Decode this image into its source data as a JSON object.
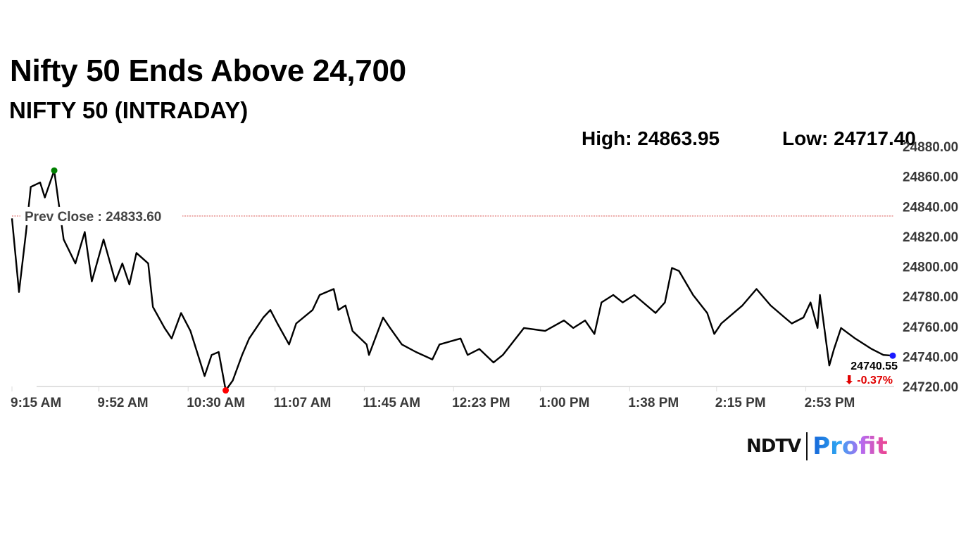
{
  "header": {
    "title": "Nifty 50 Ends Above 24,700",
    "subtitle": "NIFTY 50 (INTRADAY)",
    "high": "High: 24863.95",
    "low": "Low: 24717.40"
  },
  "logo": {
    "ndtv": "NDTV",
    "profit": "Profit"
  },
  "chart_data": {
    "type": "line",
    "title": "NIFTY 50 (INTRADAY)",
    "xlim": [
      "9:15",
      "15:30"
    ],
    "ylim": [
      24720,
      24880
    ],
    "grid": false,
    "y_ticks": [
      "24720.00",
      "24740.00",
      "24760.00",
      "24780.00",
      "24800.00",
      "24820.00",
      "24840.00",
      "24860.00",
      "24880.00"
    ],
    "x_ticks": [
      {
        "time": "9:15",
        "label": "9:15 AM"
      },
      {
        "time": "9:52",
        "label": "9:52 AM"
      },
      {
        "time": "10:30",
        "label": "10:30 AM"
      },
      {
        "time": "11:07",
        "label": "11:07 AM"
      },
      {
        "time": "11:45",
        "label": "11:45 AM"
      },
      {
        "time": "12:23",
        "label": "12:23 PM"
      },
      {
        "time": "13:00",
        "label": "1:00 PM"
      },
      {
        "time": "13:38",
        "label": "1:38 PM"
      },
      {
        "time": "14:15",
        "label": "2:15 PM"
      },
      {
        "time": "14:53",
        "label": "2:53 PM"
      }
    ],
    "prev_close": {
      "value": 24833.6,
      "label": "Prev Close : 24833.60",
      "color": "#d9534f"
    },
    "high_point": {
      "time": "9:33",
      "value": 24863.95,
      "color": "#008000"
    },
    "low_point": {
      "time": "10:46",
      "value": 24717.4,
      "color": "#ff0000"
    },
    "last": {
      "time": "15:30",
      "value": 24740.55,
      "label": "24740.55",
      "change": "-0.37%",
      "change_icon": "arrow-down",
      "change_color": "#e00000",
      "marker_color": "#1a1aff"
    },
    "series": [
      {
        "color": "#000000",
        "points": [
          [
            "9:15",
            24832
          ],
          [
            "9:18",
            24783
          ],
          [
            "9:21",
            24823
          ],
          [
            "9:23",
            24853
          ],
          [
            "9:27",
            24856
          ],
          [
            "9:29",
            24846
          ],
          [
            "9:33",
            24863.95
          ],
          [
            "9:37",
            24818
          ],
          [
            "9:42",
            24802
          ],
          [
            "9:46",
            24823
          ],
          [
            "9:49",
            24790
          ],
          [
            "9:54",
            24818
          ],
          [
            "9:59",
            24790
          ],
          [
            "10:02",
            24802
          ],
          [
            "10:05",
            24788
          ],
          [
            "10:08",
            24809
          ],
          [
            "10:13",
            24802
          ],
          [
            "10:15",
            24773
          ],
          [
            "10:20",
            24759
          ],
          [
            "10:23",
            24752
          ],
          [
            "10:27",
            24769
          ],
          [
            "10:31",
            24757
          ],
          [
            "10:37",
            24727
          ],
          [
            "10:40",
            24741
          ],
          [
            "10:43",
            24743
          ],
          [
            "10:46",
            24717.4
          ],
          [
            "10:49",
            24724
          ],
          [
            "10:53",
            24741
          ],
          [
            "10:56",
            24752
          ],
          [
            "11:02",
            24766
          ],
          [
            "11:05",
            24771
          ],
          [
            "11:08",
            24762
          ],
          [
            "11:13",
            24748
          ],
          [
            "11:16",
            24762
          ],
          [
            "11:23",
            24771
          ],
          [
            "11:26",
            24781
          ],
          [
            "11:32",
            24785
          ],
          [
            "11:34",
            24771
          ],
          [
            "11:37",
            24774
          ],
          [
            "11:40",
            24757
          ],
          [
            "11:46",
            24748
          ],
          [
            "11:47",
            24741
          ],
          [
            "11:53",
            24766
          ],
          [
            "11:56",
            24759
          ],
          [
            "12:01",
            24748
          ],
          [
            "12:07",
            24743
          ],
          [
            "12:14",
            24738
          ],
          [
            "12:17",
            24748
          ],
          [
            "12:26",
            24752
          ],
          [
            "12:29",
            24741
          ],
          [
            "12:34",
            24745
          ],
          [
            "12:40",
            24736
          ],
          [
            "12:44",
            24741
          ],
          [
            "12:53",
            24759
          ],
          [
            "13:02",
            24757
          ],
          [
            "13:10",
            24764
          ],
          [
            "13:14",
            24759
          ],
          [
            "13:19",
            24764
          ],
          [
            "13:23",
            24755
          ],
          [
            "13:26",
            24776
          ],
          [
            "13:31",
            24781
          ],
          [
            "13:35",
            24776
          ],
          [
            "13:40",
            24781
          ],
          [
            "13:49",
            24769
          ],
          [
            "13:53",
            24776
          ],
          [
            "13:56",
            24799
          ],
          [
            "13:59",
            24797
          ],
          [
            "14:05",
            24781
          ],
          [
            "14:11",
            24769
          ],
          [
            "14:14",
            24755
          ],
          [
            "14:17",
            24762
          ],
          [
            "14:26",
            24774
          ],
          [
            "14:32",
            24785
          ],
          [
            "14:38",
            24774
          ],
          [
            "14:44",
            24766
          ],
          [
            "14:47",
            24762
          ],
          [
            "14:52",
            24766
          ],
          [
            "14:55",
            24776
          ],
          [
            "14:58",
            24759
          ],
          [
            "14:59",
            24781
          ],
          [
            "15:03",
            24734
          ],
          [
            "15:05",
            24745
          ],
          [
            "15:08",
            24759
          ],
          [
            "15:14",
            24752
          ],
          [
            "15:21",
            24745
          ],
          [
            "15:26",
            24741
          ],
          [
            "15:30",
            24740.55
          ]
        ]
      }
    ]
  }
}
